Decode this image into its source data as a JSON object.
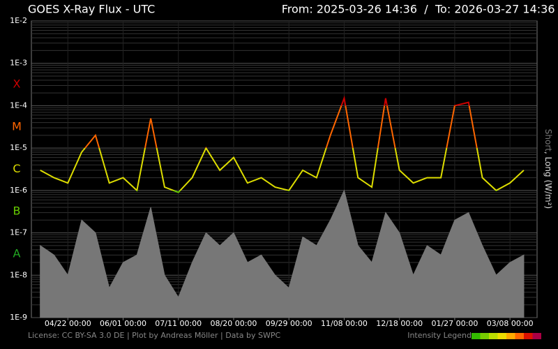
{
  "chart_data": {
    "type": "line",
    "title": "GOES X-Ray Flux - UTC",
    "from_label": "From: 2025-03-26 14:36",
    "separator": "/",
    "to_label": "To: 2026-03-27 14:36",
    "y_label_short": "Short",
    "y_label_rest": ", Long (W/m²)",
    "footer": "License: CC BY-SA 3.0 DE | Plot by Andreas Möller | Data by SWPC",
    "legend_label": "Intensity Legend",
    "intensity_colors": [
      "#33bb00",
      "#77cc00",
      "#bbdd00",
      "#eedd00",
      "#ffaa00",
      "#ff6600",
      "#dd1100",
      "#aa0044"
    ],
    "log_y": true,
    "grid": true,
    "ylim": [
      1e-09,
      0.01
    ],
    "yticks": [
      {
        "value": 1e-09,
        "label": "1E-9"
      },
      {
        "value": 1e-08,
        "label": "1E-8"
      },
      {
        "value": 1e-07,
        "label": "1E-7"
      },
      {
        "value": 1e-06,
        "label": "1E-6"
      },
      {
        "value": 1e-05,
        "label": "1E-5"
      },
      {
        "value": 0.0001,
        "label": "1E-4"
      },
      {
        "value": 0.001,
        "label": "1E-3"
      },
      {
        "value": 0.01,
        "label": "1E-2"
      }
    ],
    "flare_classes": [
      {
        "label": "A",
        "min": 1e-08,
        "color": "#22aa22"
      },
      {
        "label": "B",
        "min": 1e-07,
        "color": "#66cc00"
      },
      {
        "label": "C",
        "min": 1e-06,
        "color": "#dddd00"
      },
      {
        "label": "M",
        "min": 1e-05,
        "color": "#ff6600"
      },
      {
        "label": "X",
        "min": 0.0001,
        "color": "#cc0000"
      }
    ],
    "x": [
      "04/02 00:00",
      "04/12 00:00",
      "04/22 00:00",
      "05/02 00:00",
      "05/12 00:00",
      "05/22 00:00",
      "06/01 00:00",
      "06/11 00:00",
      "06/21 00:00",
      "07/01 00:00",
      "07/11 00:00",
      "07/21 00:00",
      "07/31 00:00",
      "08/10 00:00",
      "08/20 00:00",
      "08/30 00:00",
      "09/09 00:00",
      "09/19 00:00",
      "09/29 00:00",
      "10/09 00:00",
      "10/19 00:00",
      "10/29 00:00",
      "11/08 00:00",
      "11/18 00:00",
      "11/28 00:00",
      "12/08 00:00",
      "12/18 00:00",
      "12/28 00:00",
      "01/07 00:00",
      "01/17 00:00",
      "01/27 00:00",
      "02/06 00:00",
      "02/16 00:00",
      "02/26 00:00",
      "03/08 00:00",
      "03/18 00:00"
    ],
    "xticks": [
      "04/22 00:00",
      "06/01 00:00",
      "07/11 00:00",
      "08/20 00:00",
      "09/29 00:00",
      "11/08 00:00",
      "12/18 00:00",
      "01/27 00:00",
      "03/08 00:00"
    ],
    "series": [
      {
        "name": "Short",
        "color": "#777777",
        "values": [
          5e-08,
          3e-08,
          1e-08,
          2e-07,
          1e-07,
          5e-09,
          2e-08,
          3e-08,
          4e-07,
          1e-08,
          3e-09,
          2e-08,
          1e-07,
          5e-08,
          1e-07,
          2e-08,
          3e-08,
          1e-08,
          5e-09,
          8e-08,
          5e-08,
          2e-07,
          1e-06,
          5e-08,
          2e-08,
          3e-07,
          1e-07,
          1e-08,
          5e-08,
          3e-08,
          2e-07,
          3e-07,
          5e-08,
          1e-08,
          2e-08,
          3e-08
        ]
      },
      {
        "name": "Long",
        "color": "#dddd00",
        "values": [
          3e-06,
          2e-06,
          1.5e-06,
          8e-06,
          2e-05,
          1.5e-06,
          2e-06,
          1e-06,
          5e-05,
          1.2e-06,
          9e-07,
          2e-06,
          1e-05,
          3e-06,
          6e-06,
          1.5e-06,
          2e-06,
          1.2e-06,
          1e-06,
          3e-06,
          2e-06,
          2e-05,
          0.00015,
          2e-06,
          1.2e-06,
          0.00015,
          3e-06,
          1.5e-06,
          2e-06,
          2e-06,
          0.0001,
          0.00012,
          2e-06,
          1e-06,
          1.5e-06,
          3e-06
        ]
      }
    ]
  }
}
